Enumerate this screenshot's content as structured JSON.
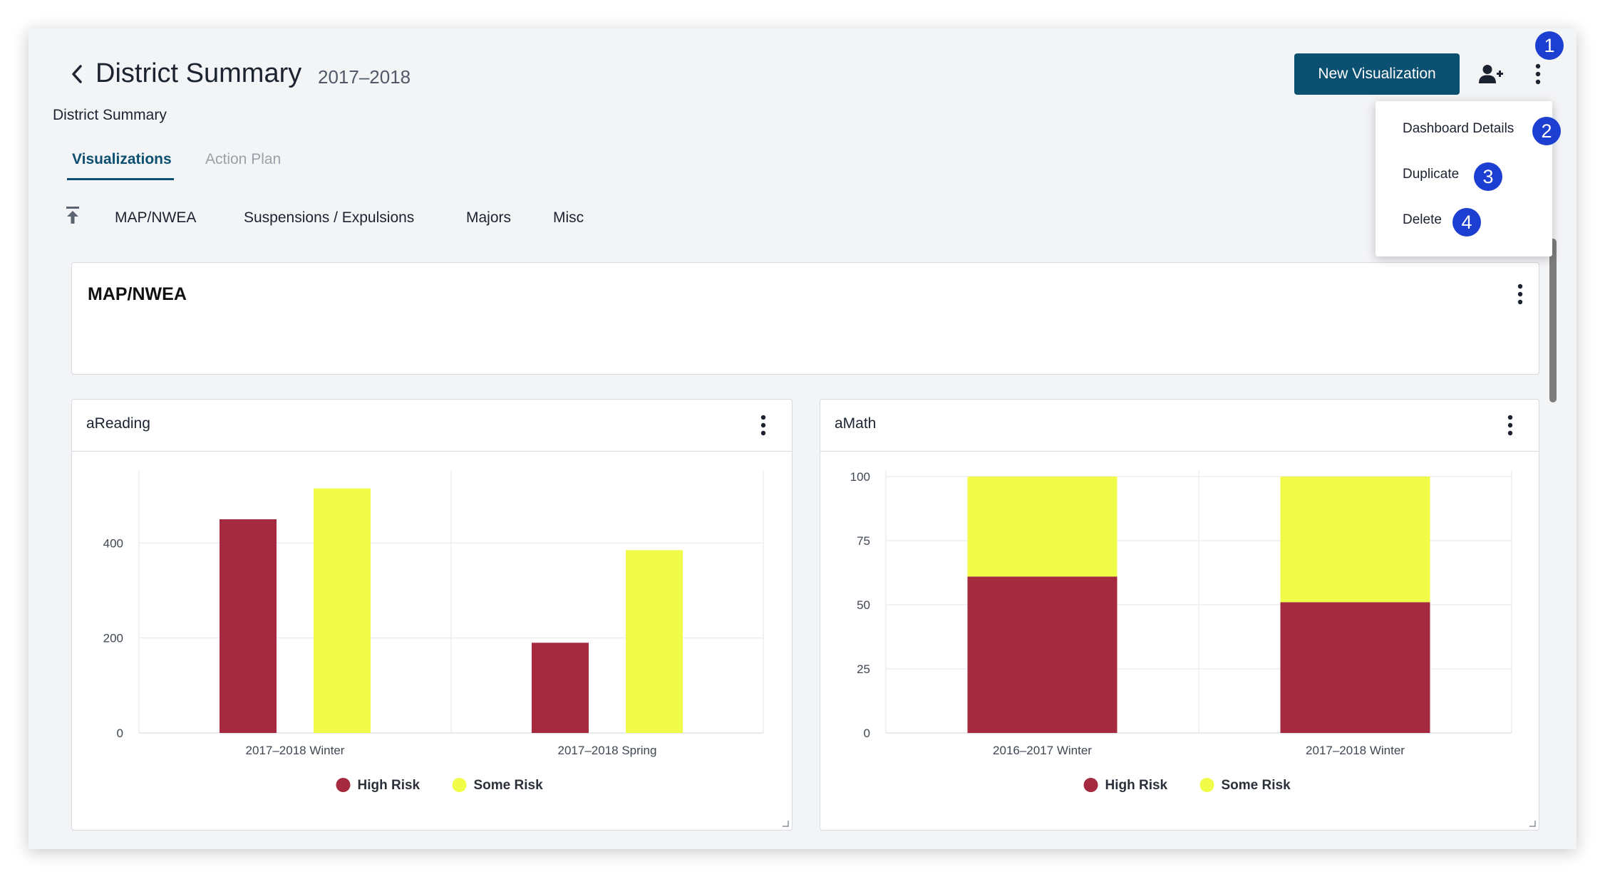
{
  "header": {
    "title": "District Summary",
    "year": "2017–2018",
    "subtitle": "District Summary",
    "new_viz_label": "New Visualization"
  },
  "tabs": [
    {
      "label": "Visualizations",
      "active": true
    },
    {
      "label": "Action Plan",
      "active": false
    }
  ],
  "sections": [
    "MAP/NWEA",
    "Suspensions / Expulsions",
    "Majors",
    "Misc"
  ],
  "section_panel": {
    "title": "MAP/NWEA"
  },
  "menu": {
    "items": [
      {
        "label": "Dashboard Details",
        "badge": "2"
      },
      {
        "label": "Duplicate",
        "badge": "3"
      },
      {
        "label": "Delete",
        "badge": "4"
      }
    ],
    "more_badge": "1"
  },
  "colors": {
    "primary": "#0b4f71",
    "high_risk": "#a52a3f",
    "some_risk": "#f0fc47",
    "badge": "#1c3fd1"
  },
  "chart_data": [
    {
      "type": "bar",
      "title": "aReading",
      "categories": [
        "2017–2018 Winter",
        "2017–2018 Spring"
      ],
      "series": [
        {
          "name": "High Risk",
          "values": [
            450,
            190
          ]
        },
        {
          "name": "Some Risk",
          "values": [
            515,
            385
          ]
        }
      ],
      "ylim": [
        0,
        540
      ],
      "yticks": [
        0,
        200,
        400
      ],
      "grid": true,
      "legend": "bottom"
    },
    {
      "type": "bar",
      "stacked": true,
      "title": "aMath",
      "categories": [
        "2016–2017 Winter",
        "2017–2018 Winter"
      ],
      "series": [
        {
          "name": "High Risk",
          "values": [
            61,
            51
          ]
        },
        {
          "name": "Some Risk",
          "values": [
            39,
            49
          ]
        }
      ],
      "ylim": [
        0,
        100
      ],
      "yticks": [
        0,
        25,
        50,
        75,
        100
      ],
      "grid": true,
      "legend": "bottom"
    }
  ]
}
